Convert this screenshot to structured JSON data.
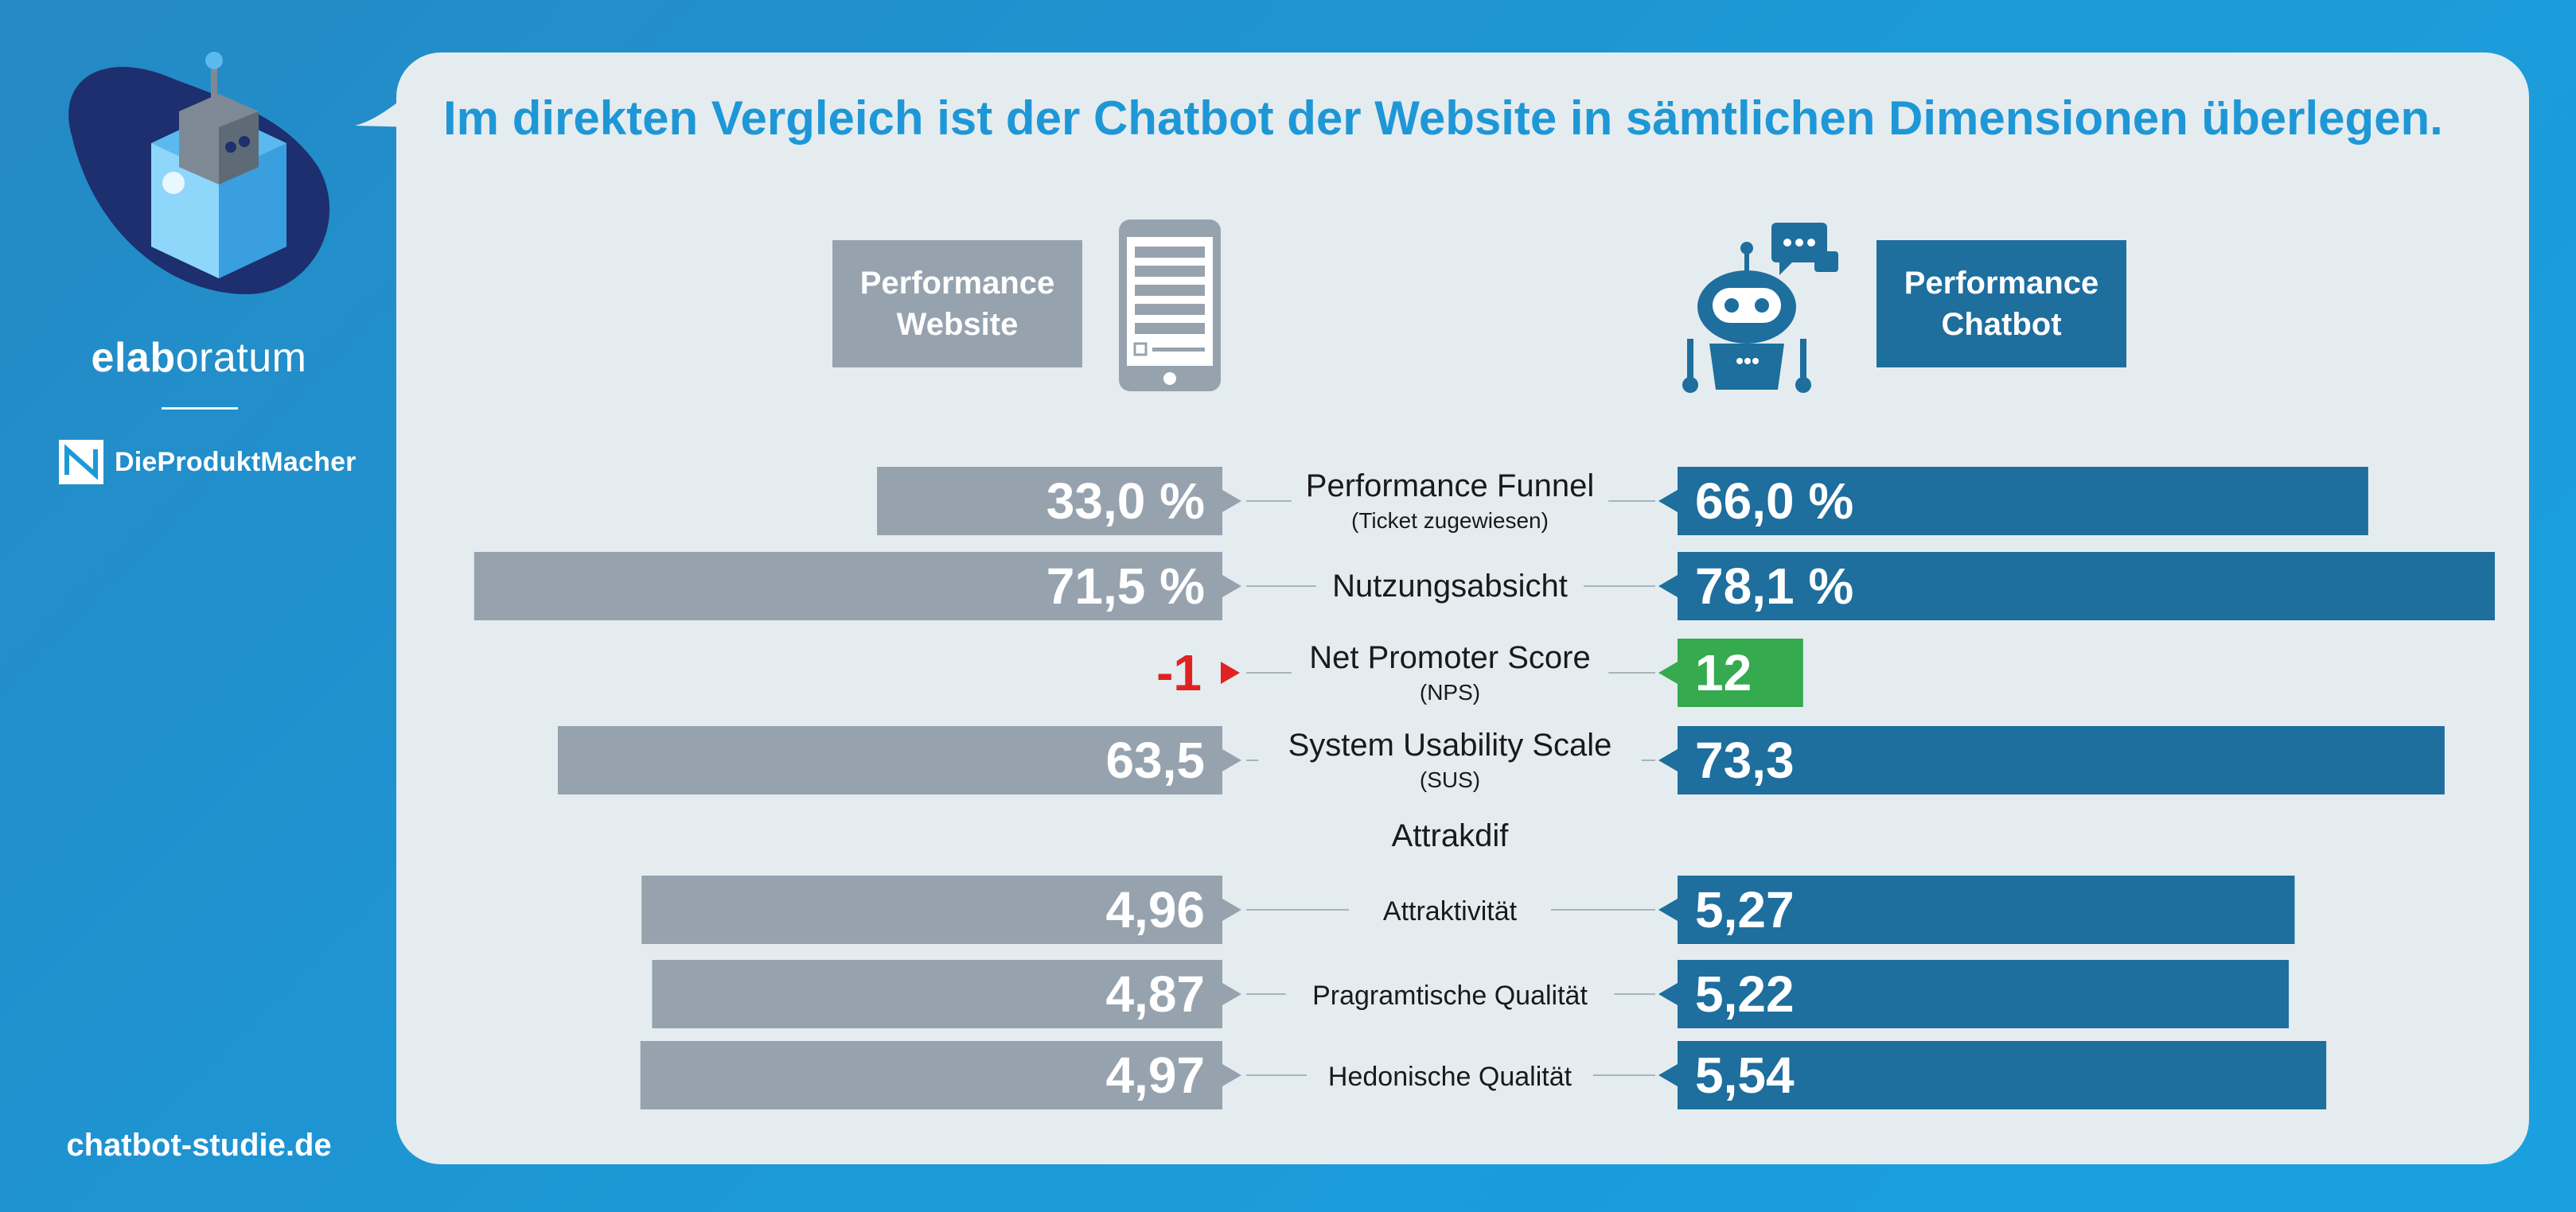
{
  "brand": {
    "name_bold": "elab",
    "name_rest": "oratum",
    "partner": "DieProduktMacher",
    "url": "chatbot-studie.de"
  },
  "headline": "Im direkten Vergleich ist der Chatbot der Website in sämtlichen Dimensionen überlegen.",
  "columns": {
    "website": {
      "label": "Performance\nWebsite",
      "icon": "smartphone-form-icon"
    },
    "chatbot": {
      "label": "Performance\nChatbot",
      "icon": "robot-chat-icon"
    }
  },
  "colors": {
    "website": "#96a3af",
    "chatbot": "#1e6e9e",
    "highlight": "#35aa4f",
    "negative": "#e02222",
    "accent": "#1e97d6"
  },
  "chart_data": {
    "type": "bar",
    "series": [
      {
        "name": "Performance Website"
      },
      {
        "name": "Performance Chatbot"
      }
    ],
    "metrics": [
      {
        "label": "Performance Funnel",
        "sublabel": "(Ticket zugewiesen)",
        "website": 33.0,
        "chatbot": 66.0,
        "website_text": "33,0 %",
        "chatbot_text": "66,0 %",
        "max": 100
      },
      {
        "label": "Nutzungsabsicht",
        "sublabel": "",
        "website": 71.5,
        "chatbot": 78.1,
        "website_text": "71,5 %",
        "chatbot_text": "78,1 %",
        "max": 100
      },
      {
        "label": "Net Promoter Score",
        "sublabel": "(NPS)",
        "website": -1,
        "chatbot": 12,
        "website_text": "-1",
        "chatbot_text": "12",
        "max": 100,
        "highlight": true
      },
      {
        "label": "System Usability Scale",
        "sublabel": "(SUS)",
        "website": 63.5,
        "chatbot": 73.3,
        "website_text": "63,5",
        "chatbot_text": "73,3",
        "max": 100
      }
    ],
    "section_label": "Attrakdif",
    "attrakdif": [
      {
        "label": "Attraktivität",
        "website": 4.96,
        "chatbot": 5.27,
        "website_text": "4,96",
        "chatbot_text": "5,27",
        "max": 7
      },
      {
        "label": "Pragramtische Qualität",
        "website": 4.87,
        "chatbot": 5.22,
        "website_text": "4,87",
        "chatbot_text": "5,22",
        "max": 7
      },
      {
        "label": "Hedonische Qualität",
        "website": 4.97,
        "chatbot": 5.54,
        "website_text": "4,97",
        "chatbot_text": "5,54",
        "max": 7
      }
    ]
  }
}
